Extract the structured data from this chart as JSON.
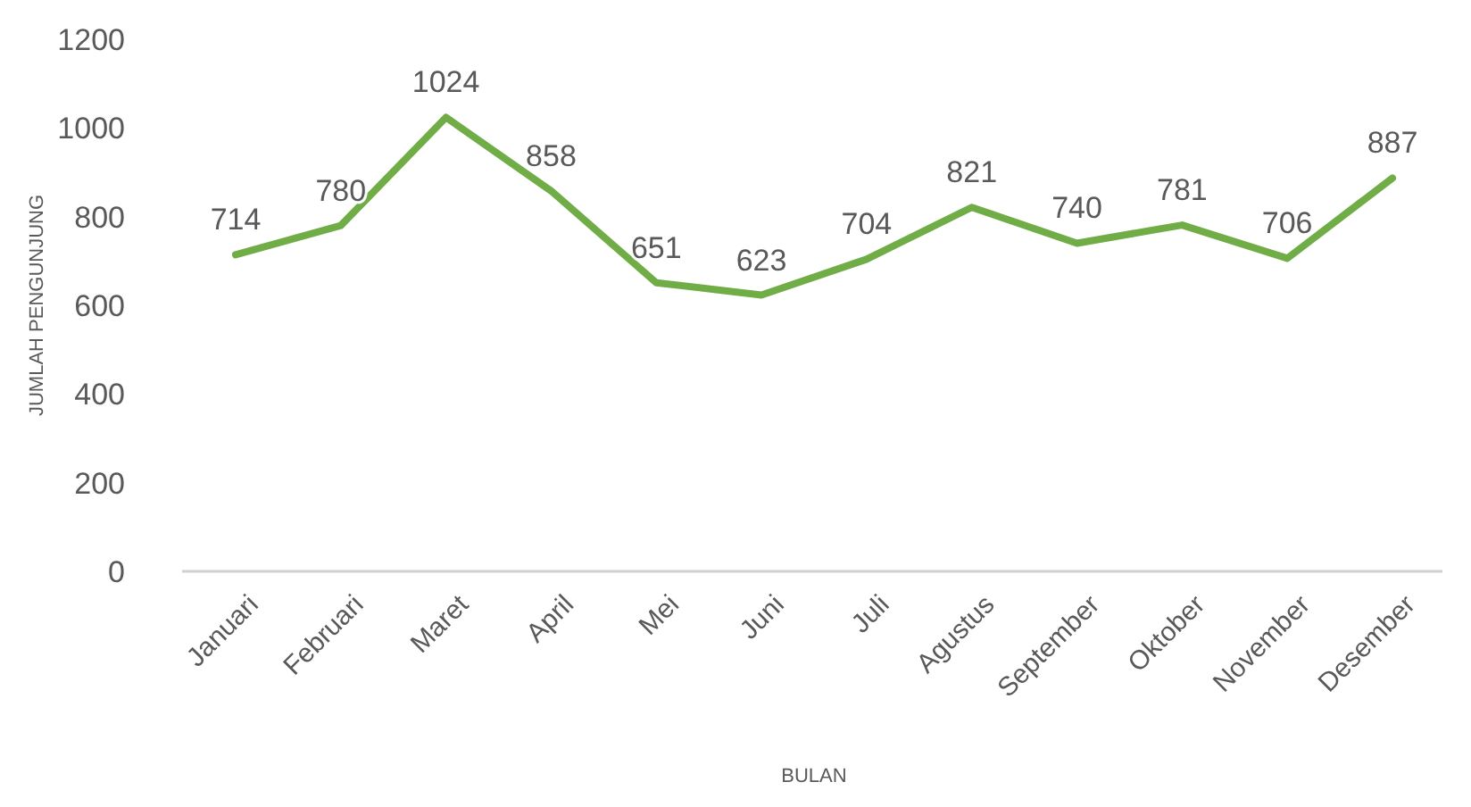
{
  "chart_data": {
    "type": "line",
    "xlabel": "BULAN",
    "ylabel": "JUMLAH PENGUNJUNG",
    "categories": [
      "Januari",
      "Februari",
      "Maret",
      "April",
      "Mei",
      "Juni",
      "Juli",
      "Agustus",
      "September",
      "Oktober",
      "November",
      "Desember"
    ],
    "series": [
      {
        "color": "#70ad47",
        "values": [
          714,
          780,
          1024,
          858,
          651,
          623,
          704,
          821,
          740,
          781,
          706,
          887
        ]
      }
    ],
    "ylim": [
      0,
      1200
    ],
    "yticks": [
      0,
      200,
      400,
      600,
      800,
      1000,
      1200
    ],
    "grid": false,
    "marker": "none",
    "line_style": "solid",
    "data_labels": true
  }
}
